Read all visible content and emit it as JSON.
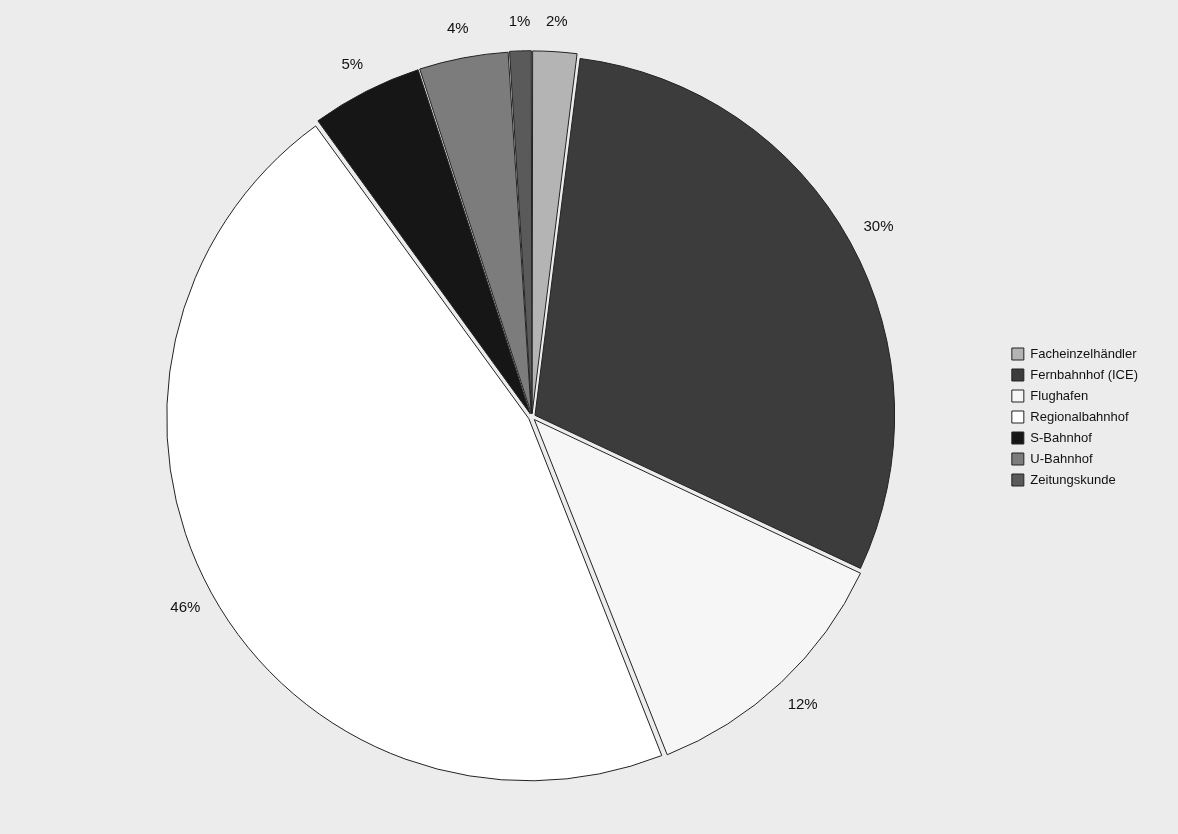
{
  "chart_data": {
    "type": "pie",
    "categories": [
      "Facheinzelhändler",
      "Fernbahnhof (ICE)",
      "Flughafen",
      "Regionalbahnhof",
      "S-Bahnhof",
      "U-Bahnhof",
      "Zeitungskunde"
    ],
    "values": [
      2,
      30,
      12,
      46,
      5,
      4,
      1
    ],
    "value_labels": [
      "2%",
      "30%",
      "12%",
      "46%",
      "5%",
      "4%",
      "1%"
    ],
    "colors": [
      "#b4b4b4",
      "#3c3c3c",
      "#f6f6f6",
      "#ffffff",
      "#161616",
      "#7c7c7c",
      "#5a5a5a"
    ],
    "data_labels": true,
    "legend": "right"
  }
}
